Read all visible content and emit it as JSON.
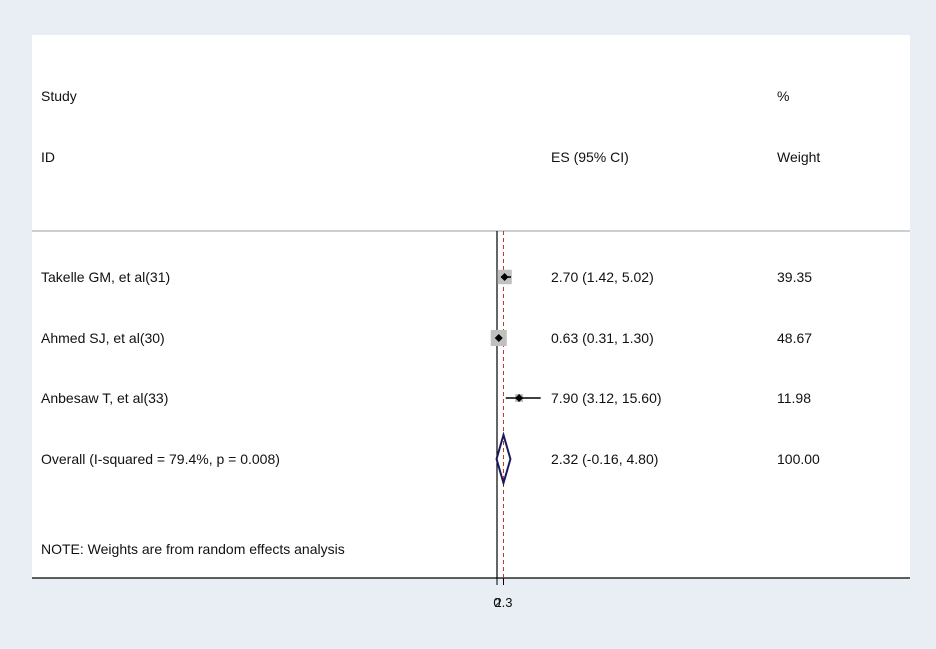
{
  "chart_data": {
    "type": "forest",
    "header": {
      "study_line1": "Study",
      "study_line2": "ID",
      "es_label": "ES (95% CI)",
      "weight_line1": "%",
      "weight_line2": "Weight"
    },
    "studies": [
      {
        "label": "Takelle GM, et al(31)",
        "es": 2.7,
        "lower": 1.42,
        "upper": 5.02,
        "ci_text": "2.70 (1.42, 5.02)",
        "weight": 39.35,
        "weight_text": "39.35"
      },
      {
        "label": "Ahmed SJ, et al(30)",
        "es": 0.63,
        "lower": 0.31,
        "upper": 1.3,
        "ci_text": "0.63 (0.31, 1.30)",
        "weight": 48.67,
        "weight_text": "48.67"
      },
      {
        "label": "Anbesaw T, et al(33)",
        "es": 7.9,
        "lower": 3.12,
        "upper": 15.6,
        "ci_text": "7.90 (3.12, 15.60)",
        "weight": 11.98,
        "weight_text": "11.98"
      }
    ],
    "overall": {
      "label": "Overall  (I-squared = 79.4%, p = 0.008)",
      "es": 2.32,
      "lower": -0.16,
      "upper": 4.8,
      "ci_text": "2.32 (-0.16, 4.80)",
      "weight_text": "100.00"
    },
    "note": "NOTE: Weights are from random effects analysis",
    "x_ticks": [
      {
        "value": 0,
        "label": "0"
      },
      {
        "value": 2.32,
        "label": "2.3"
      }
    ],
    "null_value": 0,
    "colors": {
      "background": "#e8eef3",
      "panel": "#ffffff",
      "box": "#c0c0c0",
      "point": "#000000",
      "ci_line": "#000000",
      "diamond": "#1a1a5e",
      "overall_line": "#c0392b",
      "axis": "#000000",
      "rule": "#9aa0a6"
    }
  }
}
